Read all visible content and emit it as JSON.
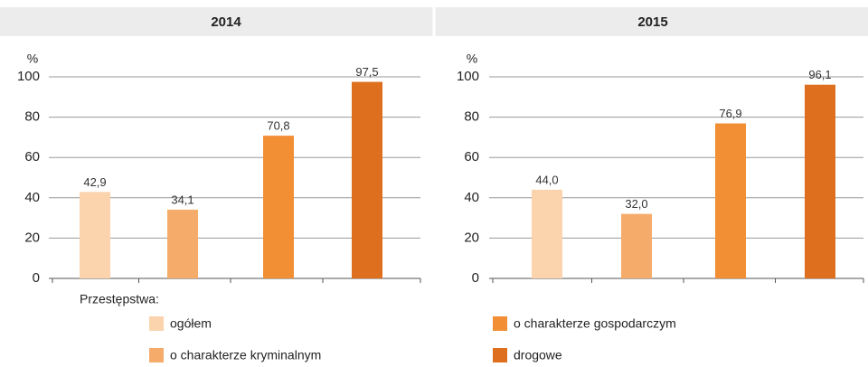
{
  "chart_data": [
    {
      "type": "bar",
      "title": "2014",
      "ylabel": "%",
      "values": [
        42.9,
        34.1,
        70.8,
        97.5
      ],
      "value_labels": [
        "42,9",
        "34,1",
        "70,8",
        "97,5"
      ],
      "ylim": [
        0,
        100
      ],
      "yticks": [
        0,
        20,
        40,
        60,
        80,
        100
      ],
      "grid": true
    },
    {
      "type": "bar",
      "title": "2015",
      "ylabel": "%",
      "values": [
        44.0,
        32.0,
        76.9,
        96.1
      ],
      "value_labels": [
        "44,0",
        "32,0",
        "76,9",
        "96,1"
      ],
      "ylim": [
        0,
        100
      ],
      "yticks": [
        0,
        20,
        40,
        60,
        80,
        100
      ],
      "grid": true
    }
  ],
  "legend": {
    "title": "Przestępstwa:",
    "items": [
      {
        "name": "ogółem",
        "color": "#fbd3ad"
      },
      {
        "name": "o charakterze kryminalnym",
        "color": "#f5ab6a"
      },
      {
        "name": "o charakterze gospodarczym",
        "color": "#f28f35"
      },
      {
        "name": "drogowe",
        "color": "#de6f1e"
      }
    ]
  }
}
